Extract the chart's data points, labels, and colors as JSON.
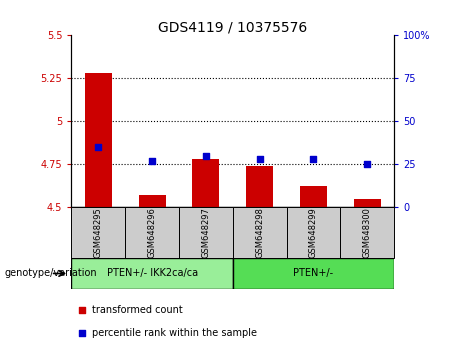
{
  "title": "GDS4119 / 10375576",
  "samples": [
    "GSM648295",
    "GSM648296",
    "GSM648297",
    "GSM648298",
    "GSM648299",
    "GSM648300"
  ],
  "bar_values": [
    5.28,
    4.57,
    4.78,
    4.74,
    4.62,
    4.55
  ],
  "bar_baseline": 4.5,
  "percentile_values": [
    35,
    27,
    30,
    28,
    28,
    25
  ],
  "ylim_left": [
    4.5,
    5.5
  ],
  "ylim_right": [
    0,
    100
  ],
  "yticks_left": [
    4.5,
    4.75,
    5.0,
    5.25,
    5.5
  ],
  "ytick_labels_left": [
    "4.5",
    "4.75",
    "5",
    "5.25",
    "5.5"
  ],
  "yticks_right": [
    0,
    25,
    50,
    75,
    100
  ],
  "ytick_labels_right": [
    "0",
    "25",
    "50",
    "75",
    "100%"
  ],
  "hlines": [
    4.75,
    5.0,
    5.25
  ],
  "bar_color": "#cc0000",
  "dot_color": "#0000cc",
  "group1_label": "PTEN+/- IKK2ca/ca",
  "group2_label": "PTEN+/-",
  "group1_indices": [
    0,
    1,
    2
  ],
  "group2_indices": [
    3,
    4,
    5
  ],
  "group1_color": "#99ee99",
  "group2_color": "#55dd55",
  "sample_box_color": "#cccccc",
  "legend_bar_label": "transformed count",
  "legend_dot_label": "percentile rank within the sample",
  "genotype_label": "genotype/variation",
  "bar_width": 0.5
}
